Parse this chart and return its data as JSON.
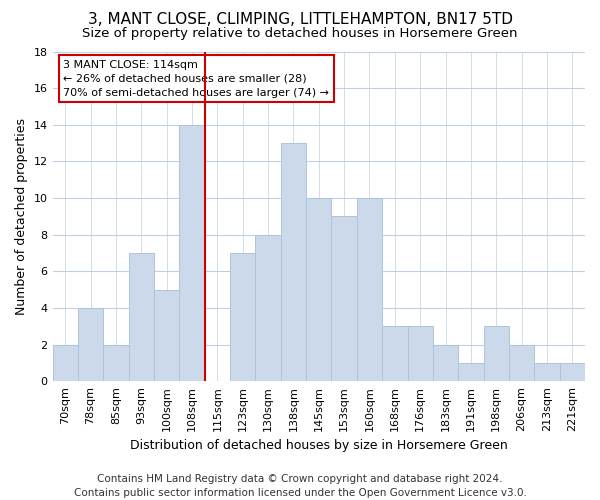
{
  "title": "3, MANT CLOSE, CLIMPING, LITTLEHAMPTON, BN17 5TD",
  "subtitle": "Size of property relative to detached houses in Horsemere Green",
  "xlabel": "Distribution of detached houses by size in Horsemere Green",
  "ylabel": "Number of detached properties",
  "footer_line1": "Contains HM Land Registry data © Crown copyright and database right 2024.",
  "footer_line2": "Contains public sector information licensed under the Open Government Licence v3.0.",
  "bar_labels": [
    "70sqm",
    "78sqm",
    "85sqm",
    "93sqm",
    "100sqm",
    "108sqm",
    "115sqm",
    "123sqm",
    "130sqm",
    "138sqm",
    "145sqm",
    "153sqm",
    "160sqm",
    "168sqm",
    "176sqm",
    "183sqm",
    "191sqm",
    "198sqm",
    "206sqm",
    "213sqm",
    "221sqm"
  ],
  "bar_values": [
    2,
    4,
    2,
    7,
    5,
    14,
    0,
    7,
    8,
    13,
    10,
    9,
    10,
    3,
    3,
    2,
    1,
    3,
    2,
    1,
    1
  ],
  "bar_color": "#ccd9ea",
  "bar_edge_color": "#aec4da",
  "vline_x_index": 6,
  "vline_color": "#cc0000",
  "annotation_title": "3 MANT CLOSE: 114sqm",
  "annotation_line1": "← 26% of detached houses are smaller (28)",
  "annotation_line2": "70% of semi-detached houses are larger (74) →",
  "annotation_box_color": "#ffffff",
  "annotation_box_edge": "#cc0000",
  "ylim": [
    0,
    18
  ],
  "yticks": [
    0,
    2,
    4,
    6,
    8,
    10,
    12,
    14,
    16,
    18
  ],
  "bg_color": "#ffffff",
  "grid_color": "#c0d0e0",
  "title_fontsize": 11,
  "subtitle_fontsize": 9.5,
  "label_fontsize": 9,
  "tick_fontsize": 8,
  "footer_fontsize": 7.5
}
